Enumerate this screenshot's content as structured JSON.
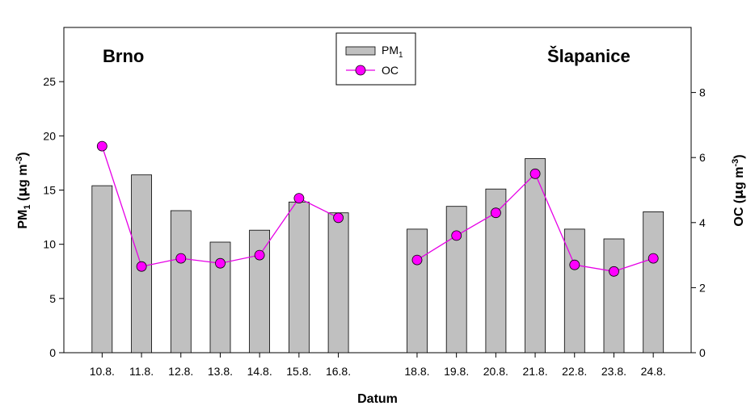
{
  "chart_data": {
    "type": "bar",
    "categories": [
      "10.8.",
      "11.8.",
      "12.8.",
      "13.8.",
      "14.8.",
      "15.8.",
      "16.8.",
      "",
      "18.8.",
      "19.8.",
      "20.8.",
      "21.8.",
      "22.8.",
      "23.8.",
      "24.8."
    ],
    "series": [
      {
        "name": "PM1",
        "type": "bar",
        "axis": "left",
        "color": "#c0c0c0",
        "values": [
          15.4,
          16.4,
          13.1,
          10.2,
          11.3,
          13.9,
          12.9,
          null,
          11.4,
          13.5,
          15.1,
          17.9,
          11.4,
          10.5,
          13.0
        ]
      },
      {
        "name": "OC",
        "type": "line",
        "axis": "right",
        "color": "#e600e6",
        "values": [
          6.35,
          2.65,
          2.9,
          2.75,
          3.0,
          4.75,
          4.15,
          null,
          2.85,
          3.6,
          4.3,
          5.5,
          2.7,
          2.5,
          2.9
        ]
      }
    ],
    "left_axis": {
      "ylim": [
        0,
        30
      ],
      "ticks": [
        0,
        5,
        10,
        15,
        20,
        25
      ]
    },
    "right_axis": {
      "ylim": [
        0,
        10
      ],
      "ticks": [
        0,
        2,
        4,
        6,
        8
      ]
    },
    "xlabel": "Datum",
    "ylabel_left": {
      "main": "PM",
      "sub": "1",
      "unit_open": " (",
      "mu": "μ",
      "unit_mid": "g m",
      "sup": "-3",
      "unit_close": ")"
    },
    "ylabel_right": {
      "main": "OC (",
      "mu": "μ",
      "unit_mid": "g m",
      "sup": "-3",
      "unit_close": ")"
    },
    "annotations": [
      "Brno",
      "Šlapanice"
    ],
    "legend": {
      "position": "top-center",
      "entries": [
        {
          "main": "PM",
          "sub": "1"
        },
        {
          "main": "OC",
          "sub": ""
        }
      ]
    },
    "grid": false
  }
}
